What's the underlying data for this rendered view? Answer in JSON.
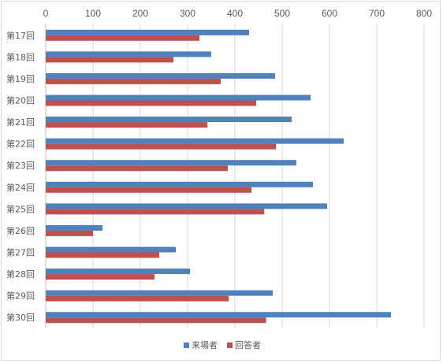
{
  "chart_data": {
    "type": "bar",
    "orientation": "horizontal",
    "categories": [
      "第17回",
      "第18回",
      "第19回",
      "第20回",
      "第21回",
      "第22回",
      "第23回",
      "第24回",
      "第25回",
      "第26回",
      "第27回",
      "第28回",
      "第29回",
      "第30回"
    ],
    "series": [
      {
        "name": "来場者",
        "color": "#4f81bd",
        "values": [
          430,
          350,
          485,
          560,
          520,
          630,
          530,
          565,
          595,
          120,
          275,
          305,
          480,
          730
        ]
      },
      {
        "name": "回答者",
        "color": "#c0504d",
        "values": [
          325,
          270,
          370,
          445,
          342,
          487,
          385,
          435,
          462,
          100,
          240,
          230,
          387,
          466
        ]
      }
    ],
    "xlim": [
      0,
      800
    ],
    "xticks": [
      "0",
      "100",
      "200",
      "300",
      "400",
      "500",
      "600",
      "700",
      "800"
    ],
    "grid": true,
    "legend_position": "bottom"
  }
}
